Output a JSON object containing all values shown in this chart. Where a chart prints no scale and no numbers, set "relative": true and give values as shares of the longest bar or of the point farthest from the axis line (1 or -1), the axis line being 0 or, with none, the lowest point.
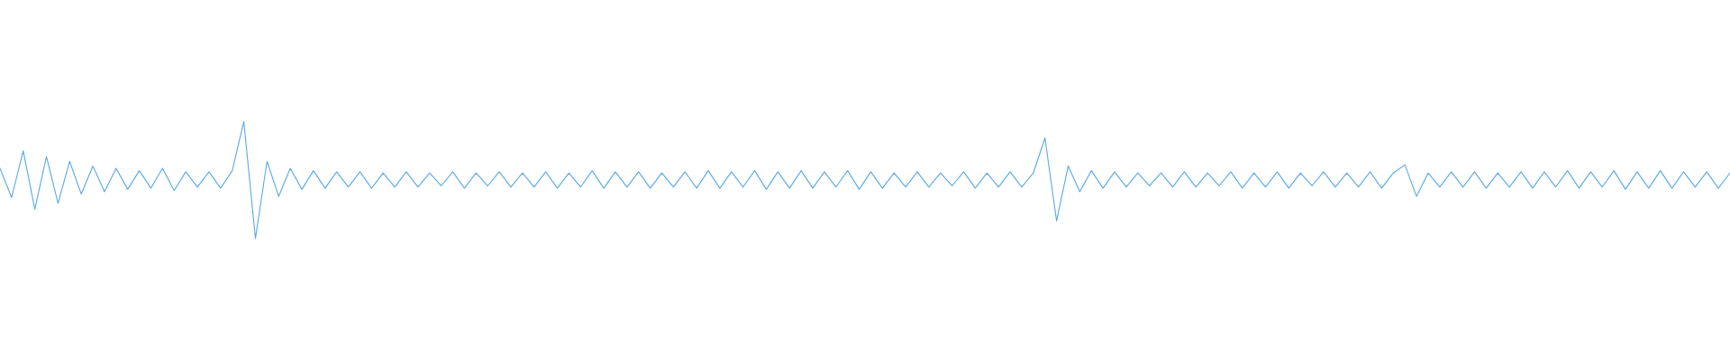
{
  "chart_data": {
    "type": "line",
    "relative": true,
    "marker": "none",
    "line_style": "solid",
    "categories": [
      null,
      null,
      null,
      null,
      null,
      null,
      null,
      null,
      null,
      null,
      null,
      null,
      null,
      null,
      null,
      null,
      null,
      null,
      null,
      null,
      null,
      null,
      null,
      null,
      null,
      null,
      null,
      null,
      null,
      null,
      null,
      null,
      null,
      null,
      null,
      null,
      null,
      null,
      null,
      null,
      null,
      null,
      null,
      null,
      null,
      null,
      null,
      null,
      null,
      null,
      null,
      null,
      null,
      null,
      null,
      null,
      null,
      null,
      null,
      null,
      null,
      null,
      null,
      null,
      null,
      null,
      null,
      null,
      null,
      null,
      null,
      null,
      null,
      null,
      null,
      null,
      null,
      null,
      null,
      null,
      null,
      null,
      null,
      null,
      null,
      null,
      null,
      null,
      null,
      null,
      null,
      null,
      null,
      null,
      null,
      null,
      null,
      null,
      null,
      null,
      null,
      null,
      null,
      null,
      null,
      null,
      null,
      null,
      null,
      null,
      null,
      null,
      null,
      null,
      null,
      null,
      null,
      null,
      null,
      null,
      null,
      null,
      null,
      null,
      null,
      null,
      null,
      null,
      null,
      null,
      null,
      null,
      null,
      null,
      null,
      null,
      null,
      null,
      null,
      null,
      null,
      null,
      null,
      null,
      null,
      null,
      null,
      null,
      null,
      null
    ],
    "series": [
      {
        "color": "#5aa9e6",
        "values": [
          0.6,
          0.35,
          0.75,
          0.25,
          0.7,
          0.3,
          0.66,
          0.38,
          0.62,
          0.4,
          0.6,
          0.42,
          0.58,
          0.43,
          0.6,
          0.41,
          0.57,
          0.44,
          0.57,
          0.43,
          0.58,
          1,
          0,
          0.66,
          0.36,
          0.6,
          0.42,
          0.58,
          0.43,
          0.57,
          0.44,
          0.57,
          0.43,
          0.56,
          0.44,
          0.57,
          0.44,
          0.56,
          0.45,
          0.57,
          0.43,
          0.56,
          0.45,
          0.57,
          0.44,
          0.56,
          0.44,
          0.57,
          0.43,
          0.56,
          0.44,
          0.58,
          0.43,
          0.57,
          0.44,
          0.57,
          0.43,
          0.56,
          0.44,
          0.57,
          0.43,
          0.58,
          0.43,
          0.57,
          0.44,
          0.58,
          0.42,
          0.57,
          0.43,
          0.58,
          0.43,
          0.57,
          0.44,
          0.58,
          0.42,
          0.57,
          0.43,
          0.56,
          0.44,
          0.57,
          0.44,
          0.56,
          0.45,
          0.57,
          0.43,
          0.56,
          0.44,
          0.57,
          0.44,
          0.56,
          0.86,
          0.15,
          0.62,
          0.4,
          0.58,
          0.43,
          0.57,
          0.44,
          0.56,
          0.45,
          0.56,
          0.44,
          0.57,
          0.44,
          0.56,
          0.45,
          0.57,
          0.43,
          0.56,
          0.44,
          0.57,
          0.43,
          0.56,
          0.45,
          0.57,
          0.44,
          0.56,
          0.44,
          0.57,
          0.43,
          0.56,
          0.63,
          0.36,
          0.56,
          0.44,
          0.57,
          0.44,
          0.57,
          0.43,
          0.56,
          0.44,
          0.57,
          0.43,
          0.57,
          0.44,
          0.58,
          0.43,
          0.57,
          0.44,
          0.58,
          0.42,
          0.57,
          0.43,
          0.58,
          0.43,
          0.57,
          0.44,
          0.57,
          0.43,
          0.56
        ]
      }
    ]
  }
}
